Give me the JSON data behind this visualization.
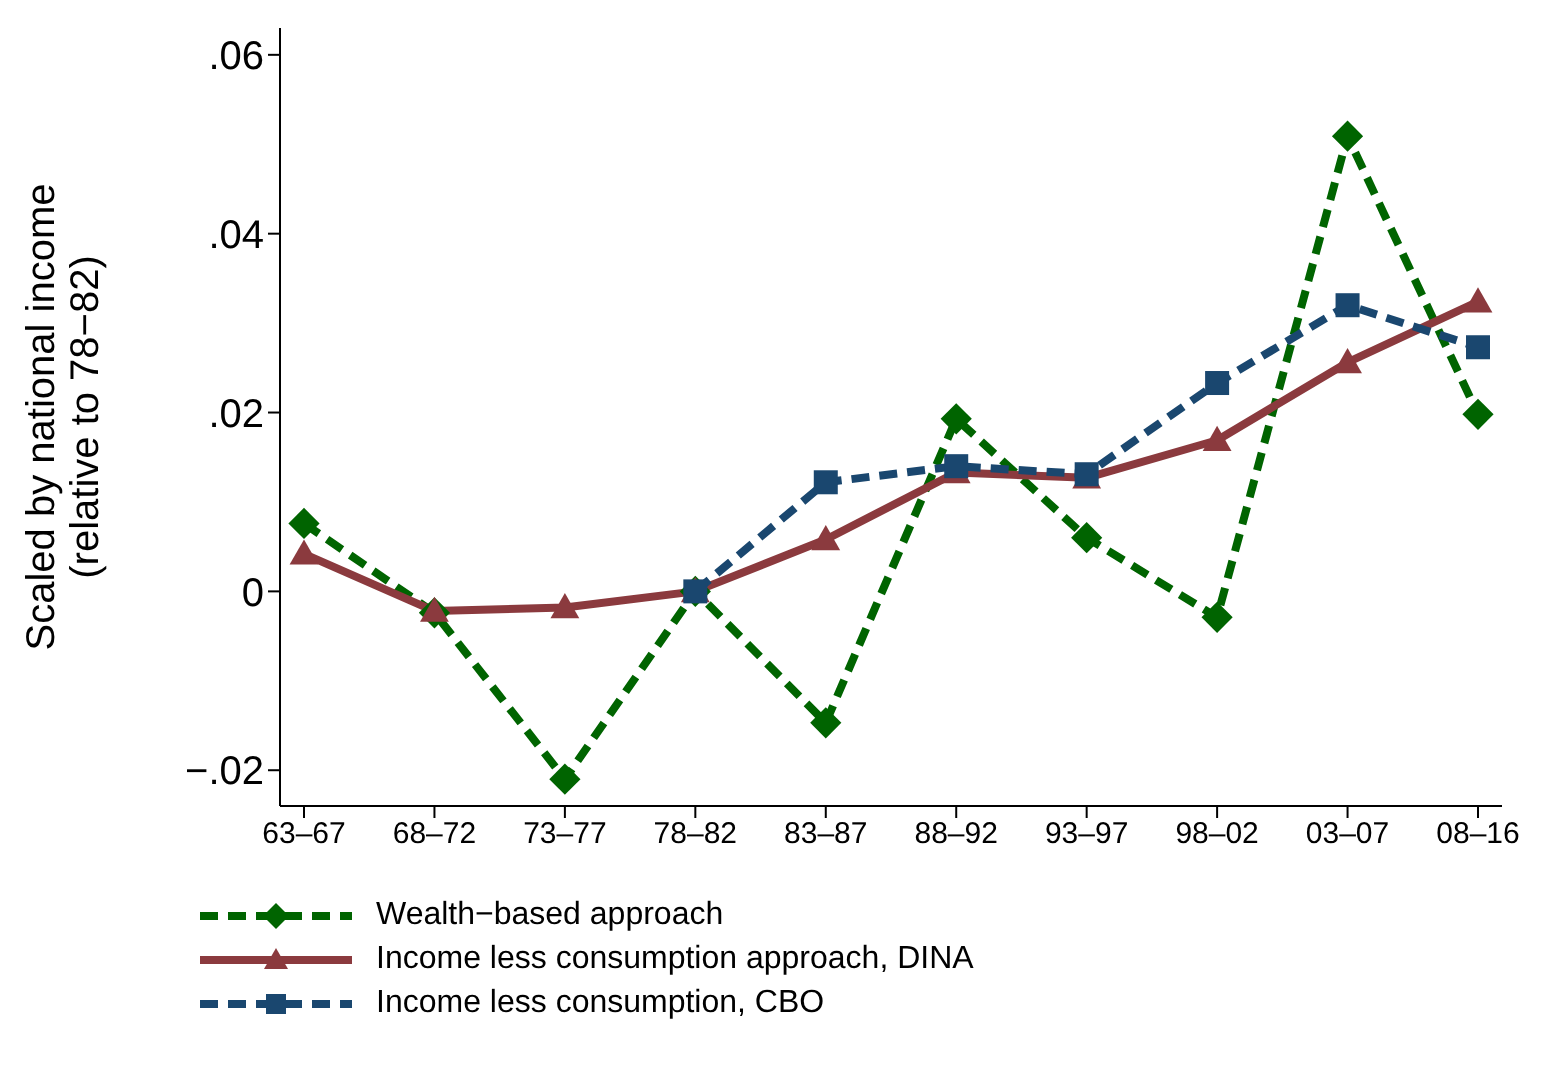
{
  "chart_data": {
    "type": "line",
    "ylabel": "Scaled by national income\n(relative to 78−82)",
    "categories": [
      "63–67",
      "68–72",
      "73–77",
      "78–82",
      "83–87",
      "88–92",
      "93–97",
      "98–02",
      "03–07",
      "08–16"
    ],
    "series": [
      {
        "name": "Wealth−based approach",
        "color": "#006400",
        "marker": "diamond",
        "line_style": "dashed",
        "values": [
          0.0076,
          -0.0024,
          -0.021,
          0,
          -0.0147,
          0.0193,
          0.006,
          -0.0029,
          0.0509,
          0.0198
        ]
      },
      {
        "name": "Income less consumption approach, DINA",
        "color": "#8b3a3e",
        "marker": "triangle",
        "line_style": "solid",
        "values": [
          0.0042,
          -0.0022,
          -0.0018,
          0,
          0.0058,
          0.0133,
          0.0127,
          0.0169,
          0.0256,
          0.0324
        ]
      },
      {
        "name": "Income less consumption, CBO",
        "color": "#1a476f",
        "marker": "square",
        "line_style": "dashed",
        "values": [
          null,
          null,
          null,
          0,
          0.0122,
          0.014,
          0.0131,
          0.0233,
          0.032,
          0.0273
        ]
      }
    ],
    "ylim": [
      -0.024,
      0.063
    ],
    "yticks": [
      {
        "value": -0.02,
        "label": "−.02"
      },
      {
        "value": 0,
        "label": "0"
      },
      {
        "value": 0.02,
        "label": ".02"
      },
      {
        "value": 0.04,
        "label": ".04"
      },
      {
        "value": 0.06,
        "label": ".06"
      }
    ],
    "grid": false,
    "legend": "bottom"
  }
}
